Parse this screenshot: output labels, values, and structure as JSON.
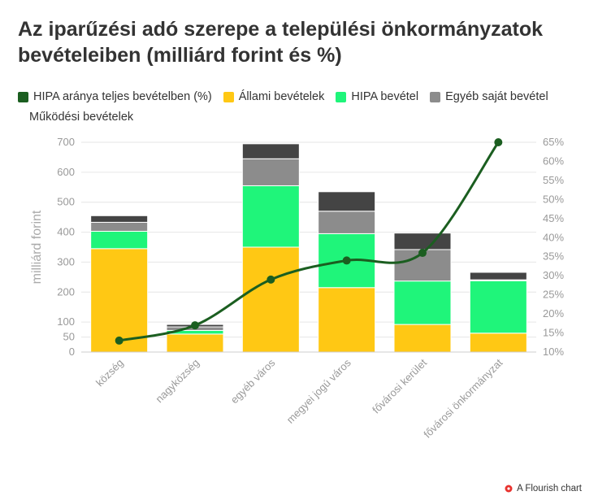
{
  "title": "Az iparűzési adó szerepe a települési önkormányzatok bevételeiben (milliárd forint és %)",
  "footer": {
    "label": "A Flourish chart"
  },
  "chart_data": {
    "type": "bar",
    "stacked": true,
    "categories": [
      "község",
      "nagyközség",
      "egyéb város",
      "megyei jogú város",
      "fővárosi kerület",
      "fővárosi önkormányzat"
    ],
    "legend": [
      {
        "name": "HIPA aránya teljes bevételben (%)",
        "color": "#1b5e20"
      },
      {
        "name": "Állami bevételek",
        "color": "#ffc814"
      },
      {
        "name": "HIPA bevétel",
        "color": "#1ff57a"
      },
      {
        "name": "Egyéb saját bevétel",
        "color": "#8c8c8c"
      },
      {
        "name": "Működési bevételek",
        "color": "#444444"
      }
    ],
    "series": [
      {
        "name": "Állami bevételek",
        "color": "#ffc814",
        "values": [
          345,
          60,
          350,
          215,
          92,
          63
        ]
      },
      {
        "name": "HIPA bevétel",
        "color": "#1ff57a",
        "values": [
          58,
          12,
          205,
          180,
          145,
          175
        ]
      },
      {
        "name": "Egyéb saját bevétel",
        "color": "#8c8c8c",
        "values": [
          30,
          12,
          90,
          75,
          105,
          3
        ]
      },
      {
        "name": "Működési bevételek",
        "color": "#444444",
        "values": [
          22,
          8,
          50,
          65,
          55,
          25
        ]
      }
    ],
    "line": {
      "name": "HIPA aránya teljes bevételben (%)",
      "color": "#1b5e20",
      "values": [
        13,
        17,
        29,
        34,
        36,
        65
      ]
    },
    "ylabel": "milliárd forint",
    "ylim": [
      0,
      700
    ],
    "yticks": [
      0,
      50,
      100,
      200,
      300,
      400,
      500,
      600,
      700
    ],
    "y2lim": [
      10,
      65
    ],
    "y2ticks": [
      "10%",
      "15%",
      "20%",
      "25%",
      "30%",
      "35%",
      "40%",
      "45%",
      "50%",
      "55%",
      "60%",
      "65%"
    ],
    "grid": true
  }
}
